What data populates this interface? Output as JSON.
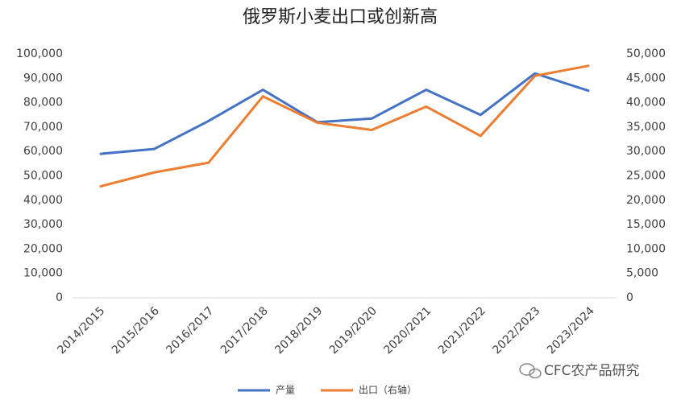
{
  "chart_data": {
    "type": "line",
    "title": "俄罗斯小麦出口或创新高",
    "categories": [
      "2014/2015",
      "2015/2016",
      "2016/2017",
      "2017/2018",
      "2018/2019",
      "2019/2020",
      "2020/2021",
      "2021/2022",
      "2022/2023",
      "2023/2024"
    ],
    "series": [
      {
        "name": "产量",
        "color": "#4472c4",
        "values": [
          59000,
          61000,
          72500,
          85300,
          72000,
          73500,
          85300,
          75000,
          92000,
          84800
        ]
      },
      {
        "name": "出口（右轴）",
        "color": "#ed7d31",
        "axis": "y2",
        "values": [
          22800,
          25700,
          27700,
          41300,
          35900,
          34400,
          39200,
          33200,
          45500,
          47600
        ]
      }
    ],
    "ylim": [
      0,
      100000
    ],
    "yticks": [
      0,
      {
        "value": 10000,
        "label": "10,000"
      },
      {
        "value": 20000,
        "label": "20,000"
      },
      {
        "value": 30000,
        "label": "30,000"
      },
      {
        "value": 40000,
        "label": "40,000"
      },
      {
        "value": 50000,
        "label": "50,000"
      },
      {
        "value": 60000,
        "label": "60,000"
      },
      {
        "value": 70000,
        "label": "70,000"
      },
      {
        "value": 80000,
        "label": "80,000"
      },
      {
        "value": 90000,
        "label": "90,000"
      },
      {
        "value": 100000,
        "label": "100,000"
      }
    ],
    "y2lim": [
      0,
      50000
    ],
    "y2ticks": [
      0,
      {
        "value": 5000,
        "label": "5,000"
      },
      {
        "value": 10000,
        "label": "10,000"
      },
      {
        "value": 15000,
        "label": "15,000"
      },
      {
        "value": 20000,
        "label": "20,000"
      },
      {
        "value": 25000,
        "label": "25,000"
      },
      {
        "value": 30000,
        "label": "30,000"
      },
      {
        "value": 35000,
        "label": "35,000"
      },
      {
        "value": 40000,
        "label": "40,000"
      },
      {
        "value": 45000,
        "label": "45,000"
      },
      {
        "value": 50000,
        "label": "50,000"
      }
    ],
    "watermark": "CFC农产品研究"
  }
}
